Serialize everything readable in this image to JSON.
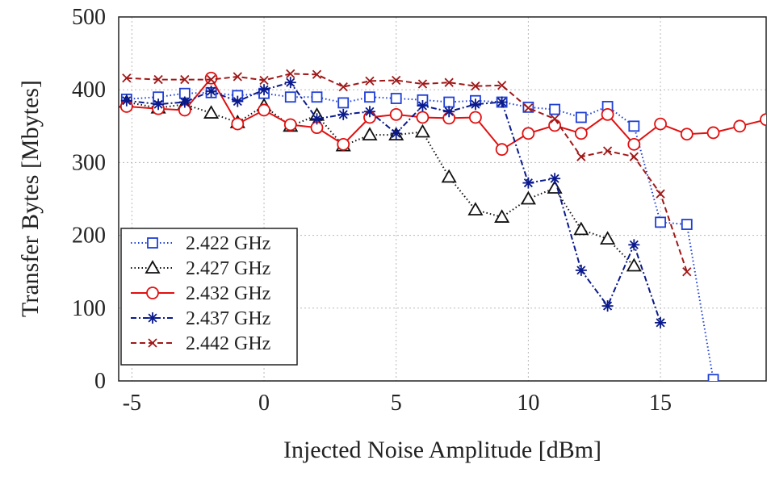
{
  "chart_data": {
    "type": "line",
    "title": "",
    "xlabel": "Injected Noise Amplitude [dBm]",
    "ylabel": "Transfer Bytes [Mbytes]",
    "xlim": [
      -5.5,
      19
    ],
    "ylim": [
      0,
      500
    ],
    "xticks": [
      -5,
      0,
      5,
      10,
      15
    ],
    "yticks": [
      0,
      100,
      200,
      300,
      400,
      500
    ],
    "grid": true,
    "legend_position": "bottom-left",
    "series": [
      {
        "name": "2.422 GHz",
        "color": "#1f3fd6",
        "dash": "dotted",
        "marker": "square",
        "x": [
          -5.2,
          -4,
          -3,
          -2,
          -1,
          0,
          1,
          2,
          3,
          4,
          5,
          6,
          7,
          8,
          9,
          10,
          11,
          12,
          13,
          14,
          15,
          16,
          17
        ],
        "y": [
          387,
          390,
          395,
          396,
          392,
          395,
          390,
          390,
          382,
          390,
          388,
          386,
          383,
          385,
          383,
          376,
          373,
          362,
          377,
          350,
          218,
          215,
          2
        ]
      },
      {
        "name": "2.427 GHz",
        "color": "#111111",
        "dash": "dotted",
        "marker": "triangle",
        "x": [
          -5.2,
          -4,
          -3,
          -2,
          -1,
          0,
          1,
          2,
          3,
          4,
          5,
          6,
          7,
          8,
          9,
          10,
          11,
          12,
          13,
          14
        ],
        "y": [
          383,
          375,
          380,
          368,
          355,
          378,
          350,
          365,
          323,
          338,
          338,
          342,
          280,
          235,
          225,
          250,
          265,
          208,
          195,
          158
        ]
      },
      {
        "name": "2.432 GHz",
        "color": "#e01010",
        "dash": "solid",
        "marker": "circle",
        "x": [
          -5.2,
          -4,
          -3,
          -2,
          -1,
          0,
          1,
          2,
          3,
          4,
          5,
          6,
          7,
          8,
          9,
          10,
          11,
          12,
          13,
          14,
          15,
          16,
          17,
          18,
          19
        ],
        "y": [
          377,
          374,
          372,
          416,
          353,
          372,
          352,
          348,
          325,
          362,
          366,
          362,
          361,
          362,
          318,
          340,
          351,
          340,
          366,
          325,
          353,
          339,
          341,
          350,
          359
        ]
      },
      {
        "name": "2.437 GHz",
        "color": "#0a1a8c",
        "dash": "dashdot",
        "marker": "asterisk",
        "x": [
          -5.2,
          -4,
          -3,
          -2,
          -1,
          0,
          1,
          2,
          3,
          4,
          5,
          6,
          7,
          8,
          9,
          10,
          11,
          12,
          13,
          14,
          15
        ],
        "y": [
          385,
          380,
          383,
          398,
          384,
          400,
          410,
          360,
          366,
          370,
          340,
          378,
          370,
          380,
          383,
          272,
          278,
          152,
          103,
          187,
          80
        ]
      },
      {
        "name": "2.442 GHz",
        "color": "#a01818",
        "dash": "dashed",
        "marker": "x",
        "x": [
          -5.2,
          -4,
          -3,
          -2,
          -1,
          0,
          1,
          2,
          3,
          4,
          5,
          6,
          7,
          8,
          9,
          10,
          11,
          12,
          13,
          14,
          15,
          16
        ],
        "y": [
          416,
          414,
          414,
          414,
          418,
          413,
          422,
          421,
          404,
          412,
          413,
          408,
          410,
          405,
          406,
          375,
          360,
          308,
          316,
          308,
          257,
          150
        ]
      }
    ]
  }
}
